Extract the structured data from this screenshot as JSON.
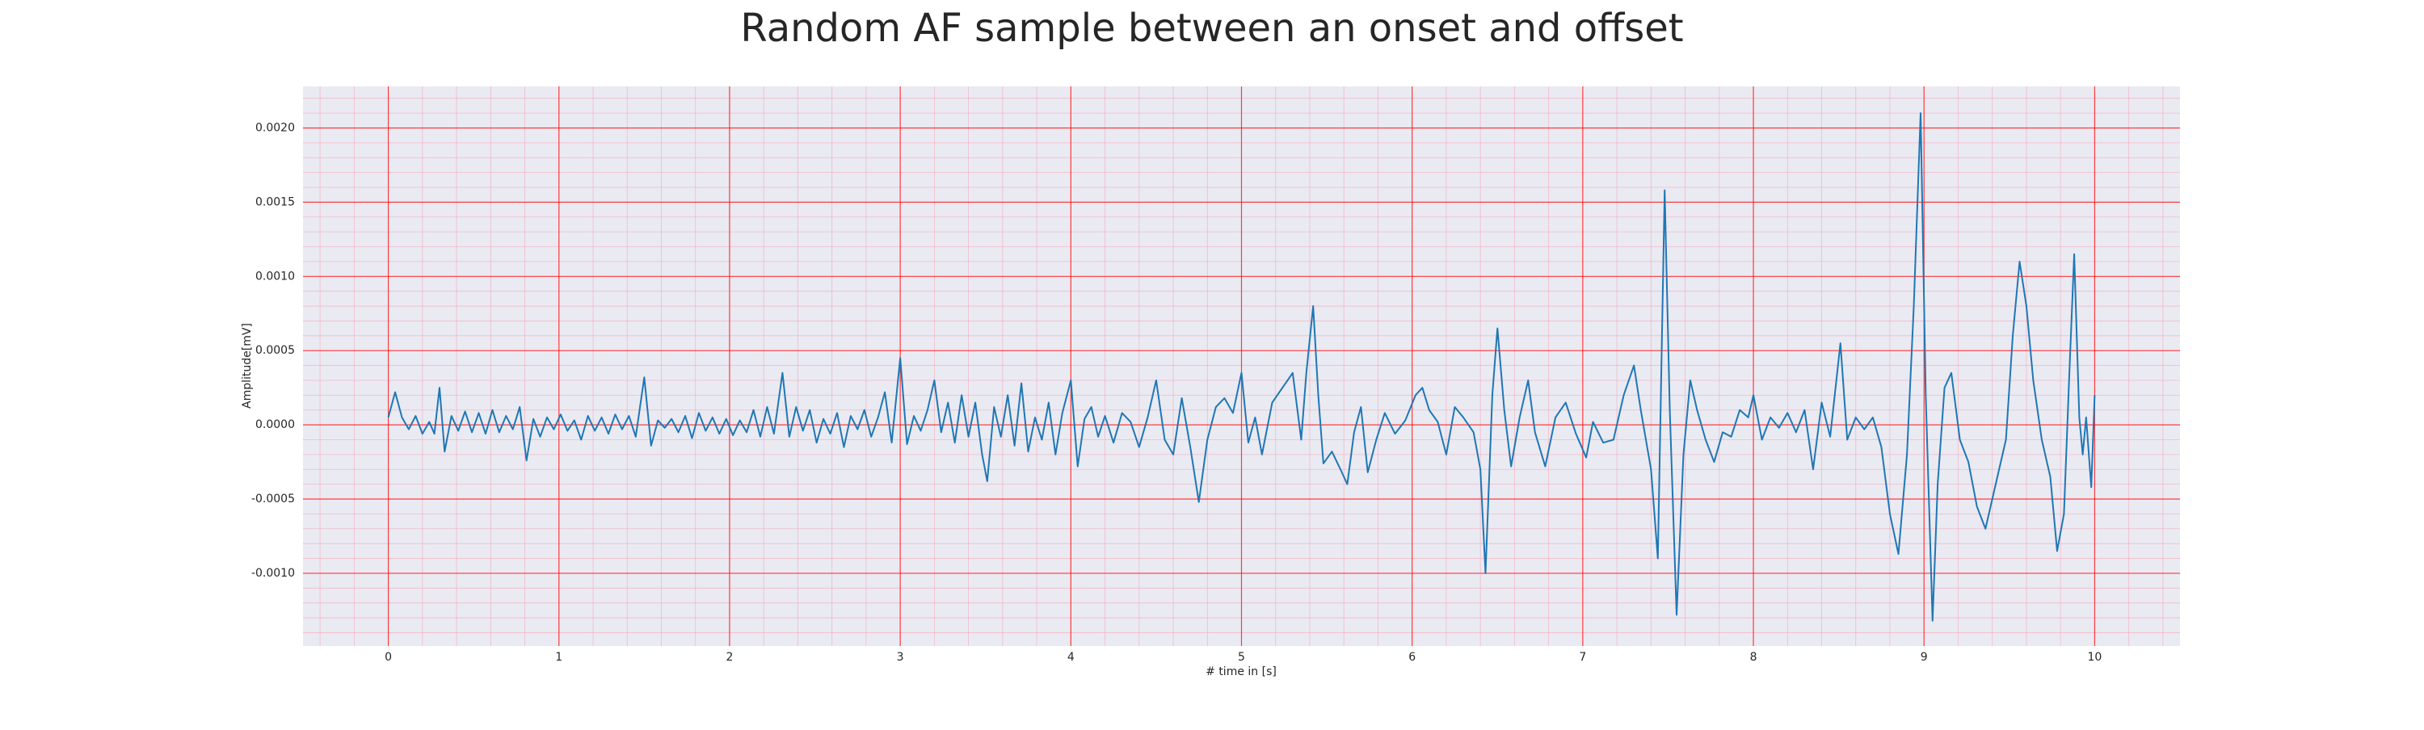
{
  "chart_data": {
    "type": "line",
    "title": "Random AF sample between an onset and offset",
    "xlabel": "# time in [s]",
    "ylabel": "Amplitude[mV]",
    "color": "#1f77b4",
    "grid": true,
    "minor_grid": true,
    "xlim": [
      -0.5,
      10.5
    ],
    "ylim": [
      -0.00149,
      0.00228
    ],
    "xticks": [
      0,
      1,
      2,
      3,
      4,
      5,
      6,
      7,
      8,
      9,
      10
    ],
    "yticks": [
      {
        "value": -0.001,
        "label": "-0.0010"
      },
      {
        "value": -0.0005,
        "label": "-0.0005"
      },
      {
        "value": 0,
        "label": "0.0000"
      },
      {
        "value": 0.0005,
        "label": "0.0005"
      },
      {
        "value": 0.001,
        "label": "0.0010"
      },
      {
        "value": 0.0015,
        "label": "0.0015"
      },
      {
        "value": 0.002,
        "label": "0.0020"
      }
    ],
    "x": [
      0.0,
      0.04,
      0.08,
      0.12,
      0.16,
      0.2,
      0.24,
      0.27,
      0.3,
      0.33,
      0.37,
      0.41,
      0.45,
      0.49,
      0.53,
      0.57,
      0.61,
      0.65,
      0.69,
      0.73,
      0.77,
      0.81,
      0.85,
      0.89,
      0.93,
      0.97,
      1.01,
      1.05,
      1.09,
      1.13,
      1.17,
      1.21,
      1.25,
      1.29,
      1.33,
      1.37,
      1.41,
      1.45,
      1.5,
      1.54,
      1.58,
      1.62,
      1.66,
      1.7,
      1.74,
      1.78,
      1.82,
      1.86,
      1.9,
      1.94,
      1.98,
      2.02,
      2.06,
      2.1,
      2.14,
      2.18,
      2.22,
      2.26,
      2.31,
      2.35,
      2.39,
      2.43,
      2.47,
      2.51,
      2.55,
      2.59,
      2.63,
      2.67,
      2.71,
      2.75,
      2.79,
      2.83,
      2.87,
      2.91,
      2.95,
      3.0,
      3.04,
      3.08,
      3.12,
      3.16,
      3.2,
      3.24,
      3.28,
      3.32,
      3.36,
      3.4,
      3.44,
      3.48,
      3.51,
      3.55,
      3.59,
      3.63,
      3.67,
      3.71,
      3.75,
      3.79,
      3.83,
      3.87,
      3.91,
      3.95,
      4.0,
      4.04,
      4.08,
      4.12,
      4.16,
      4.2,
      4.25,
      4.3,
      4.35,
      4.4,
      4.45,
      4.5,
      4.55,
      4.6,
      4.65,
      4.7,
      4.75,
      4.8,
      4.85,
      4.9,
      4.95,
      5.0,
      5.04,
      5.08,
      5.12,
      5.18,
      5.24,
      5.3,
      5.35,
      5.38,
      5.42,
      5.45,
      5.48,
      5.53,
      5.58,
      5.62,
      5.66,
      5.7,
      5.74,
      5.79,
      5.84,
      5.9,
      5.96,
      6.02,
      6.06,
      6.1,
      6.15,
      6.2,
      6.25,
      6.3,
      6.36,
      6.4,
      6.43,
      6.47,
      6.5,
      6.54,
      6.58,
      6.63,
      6.68,
      6.72,
      6.78,
      6.84,
      6.9,
      6.96,
      7.02,
      7.06,
      7.12,
      7.18,
      7.24,
      7.3,
      7.34,
      7.4,
      7.44,
      7.48,
      7.51,
      7.55,
      7.59,
      7.63,
      7.67,
      7.72,
      7.77,
      7.82,
      7.87,
      7.92,
      7.97,
      8.0,
      8.05,
      8.1,
      8.15,
      8.2,
      8.25,
      8.3,
      8.35,
      8.4,
      8.45,
      8.51,
      8.55,
      8.6,
      8.65,
      8.7,
      8.75,
      8.8,
      8.85,
      8.9,
      8.94,
      8.98,
      9.01,
      9.05,
      9.08,
      9.12,
      9.16,
      9.21,
      9.26,
      9.31,
      9.36,
      9.42,
      9.48,
      9.52,
      9.56,
      9.6,
      9.64,
      9.69,
      9.74,
      9.78,
      9.82,
      9.85,
      9.88,
      9.91,
      9.93,
      9.95,
      9.98,
      10.0
    ],
    "values": [
      5e-05,
      0.00022,
      5e-05,
      -3e-05,
      6e-05,
      -6e-05,
      2e-05,
      -6e-05,
      0.00025,
      -0.00018,
      6e-05,
      -4e-05,
      9e-05,
      -5e-05,
      8e-05,
      -6e-05,
      0.0001,
      -5e-05,
      6e-05,
      -3e-05,
      0.00012,
      -0.00024,
      4e-05,
      -8e-05,
      5e-05,
      -3e-05,
      7e-05,
      -4e-05,
      3e-05,
      -0.0001,
      6e-05,
      -4e-05,
      5e-05,
      -6e-05,
      7e-05,
      -3e-05,
      6e-05,
      -8e-05,
      0.00032,
      -0.00014,
      3e-05,
      -2e-05,
      4e-05,
      -5e-05,
      6e-05,
      -9e-05,
      8e-05,
      -4e-05,
      5e-05,
      -6e-05,
      4e-05,
      -7e-05,
      3e-05,
      -5e-05,
      0.0001,
      -8e-05,
      0.00012,
      -6e-05,
      0.00035,
      -8e-05,
      0.00012,
      -4e-05,
      0.0001,
      -0.00012,
      4e-05,
      -6e-05,
      8e-05,
      -0.00015,
      6e-05,
      -3e-05,
      0.0001,
      -8e-05,
      5e-05,
      0.00022,
      -0.00012,
      0.00045,
      -0.00013,
      6e-05,
      -4e-05,
      0.0001,
      0.0003,
      -5e-05,
      0.00015,
      -0.00012,
      0.0002,
      -8e-05,
      0.00015,
      -0.0002,
      -0.00038,
      0.00012,
      -8e-05,
      0.0002,
      -0.00014,
      0.00028,
      -0.00018,
      5e-05,
      -0.0001,
      0.00015,
      -0.0002,
      8e-05,
      0.0003,
      -0.00028,
      4e-05,
      0.00012,
      -8e-05,
      6e-05,
      -0.00012,
      8e-05,
      2e-05,
      -0.00015,
      5e-05,
      0.0003,
      -0.0001,
      -0.0002,
      0.00018,
      -0.00015,
      -0.00052,
      -0.0001,
      0.00012,
      0.00018,
      8e-05,
      0.00035,
      -0.00012,
      5e-05,
      -0.0002,
      0.00015,
      0.00025,
      0.00035,
      -0.0001,
      0.00035,
      0.0008,
      0.0002,
      -0.00026,
      -0.00018,
      -0.0003,
      -0.0004,
      -5e-05,
      0.00012,
      -0.00032,
      -0.0001,
      8e-05,
      -6e-05,
      3e-05,
      0.0002,
      0.00025,
      0.0001,
      2e-05,
      -0.0002,
      0.00012,
      5e-05,
      -5e-05,
      -0.0003,
      -0.001,
      0.0002,
      0.00065,
      0.0001,
      -0.00028,
      5e-05,
      0.0003,
      -5e-05,
      -0.00028,
      5e-05,
      0.00015,
      -6e-05,
      -0.00022,
      2e-05,
      -0.00012,
      -0.0001,
      0.0002,
      0.0004,
      0.0001,
      -0.0003,
      -0.0009,
      0.00158,
      0.0001,
      -0.00128,
      -0.0002,
      0.0003,
      0.0001,
      -0.0001,
      -0.00025,
      -5e-05,
      -8e-05,
      0.0001,
      5e-05,
      0.0002,
      -0.0001,
      5e-05,
      -2e-05,
      8e-05,
      -5e-05,
      0.0001,
      -0.0003,
      0.00015,
      -8e-05,
      0.00055,
      -0.0001,
      5e-05,
      -3e-05,
      5e-05,
      -0.00015,
      -0.0006,
      -0.00087,
      -0.0002,
      0.0008,
      0.0021,
      0.0002,
      -0.00132,
      -0.0004,
      0.00025,
      0.00035,
      -0.0001,
      -0.00025,
      -0.00055,
      -0.0007,
      -0.0004,
      -0.0001,
      0.0006,
      0.0011,
      0.0008,
      0.0003,
      -0.0001,
      -0.00035,
      -0.00085,
      -0.0006,
      0.0003,
      0.00115,
      5e-05,
      -0.0002,
      5e-05,
      -0.00042,
      0.0002
    ]
  }
}
